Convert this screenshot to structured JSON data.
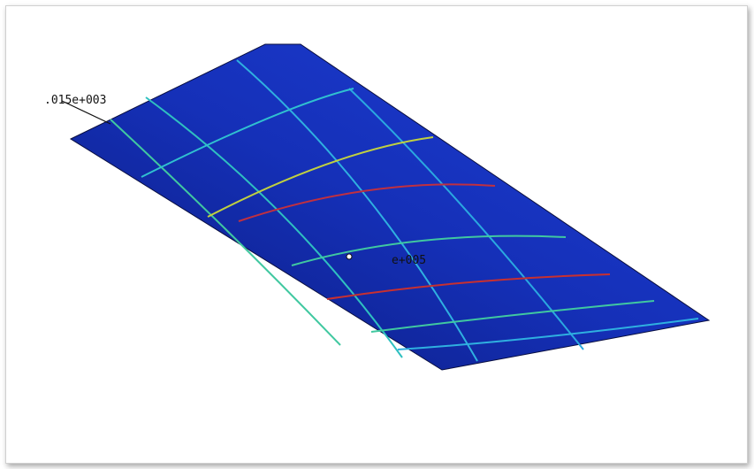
{
  "annotations": [
    {
      "label": ".015e+003"
    },
    {
      "label": "e+005"
    }
  ]
}
